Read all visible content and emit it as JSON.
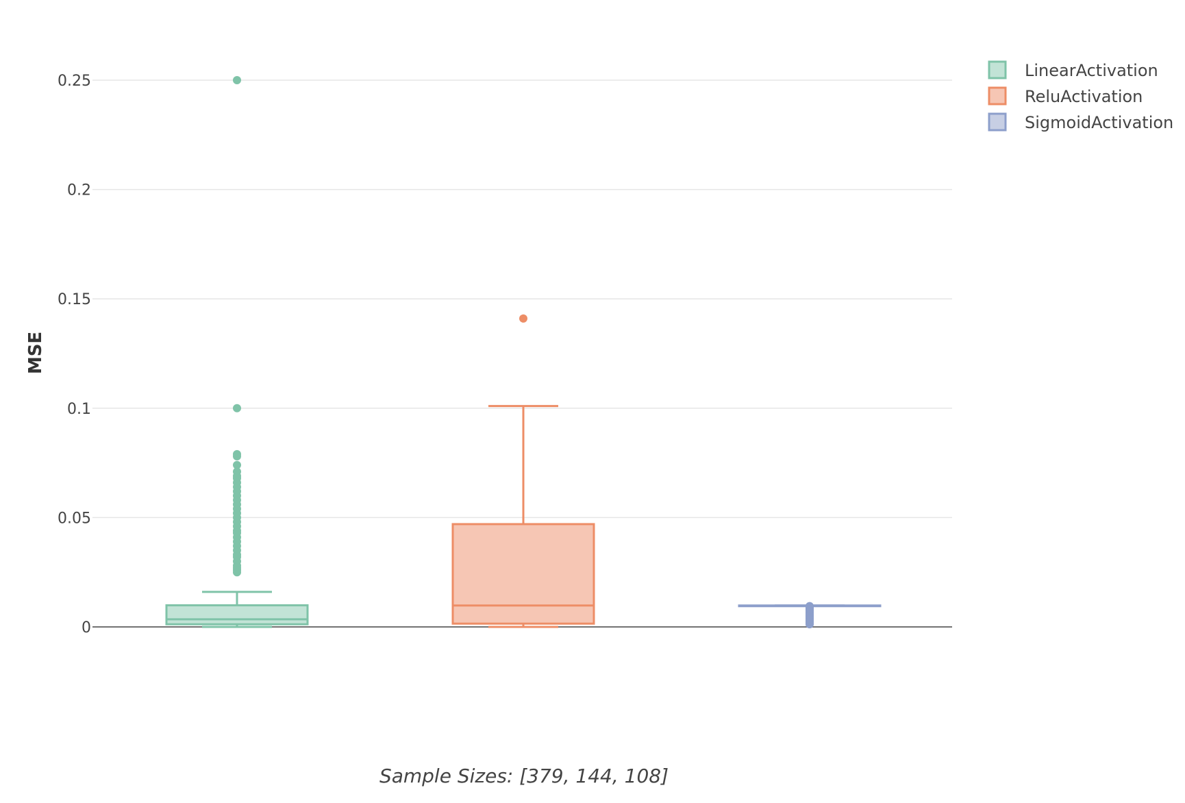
{
  "chart_data": {
    "type": "box",
    "title": "",
    "xlabel": "Sample Sizes: [379, 144, 108]",
    "ylabel": "MSE",
    "ylim": [
      -0.013,
      0.275
    ],
    "yticks": [
      {
        "value": 0,
        "label": "0"
      },
      {
        "value": 0.05,
        "label": "0.05"
      },
      {
        "value": 0.1,
        "label": "0.1"
      },
      {
        "value": 0.15,
        "label": "0.15"
      },
      {
        "value": 0.2,
        "label": "0.2"
      },
      {
        "value": 0.25,
        "label": "0.25"
      }
    ],
    "grid": true,
    "legend_position": "top-right",
    "series": [
      {
        "name": "LinearActivation",
        "color": "#7fc3a8",
        "fill": "#c2e3d6",
        "q1": 0.0012,
        "median": 0.0035,
        "q3": 0.0099,
        "whisker_low": 0.0,
        "whisker_high": 0.016,
        "outliers": [
          0.25,
          0.1,
          0.079,
          0.078,
          0.074,
          0.071,
          0.069,
          0.068,
          0.066,
          0.064,
          0.062,
          0.06,
          0.058,
          0.056,
          0.054,
          0.052,
          0.05,
          0.048,
          0.046,
          0.044,
          0.043,
          0.041,
          0.039,
          0.037,
          0.035,
          0.033,
          0.032,
          0.03,
          0.028,
          0.027,
          0.026,
          0.025
        ]
      },
      {
        "name": "ReluActivation",
        "color": "#ed8d66",
        "fill": "#f6c6b4",
        "q1": 0.0015,
        "median": 0.0098,
        "q3": 0.047,
        "whisker_low": 0.0,
        "whisker_high": 0.101,
        "outliers": [
          0.141
        ]
      },
      {
        "name": "SigmoidActivation",
        "color": "#8d9fcb",
        "fill": "#c7cfe4",
        "q1": 0.0096,
        "median": 0.0097,
        "q3": 0.0098,
        "whisker_low": 0.0096,
        "whisker_high": 0.0098,
        "outliers": [
          0.0095,
          0.0092,
          0.009,
          0.0087,
          0.0084,
          0.008,
          0.0077,
          0.0074,
          0.007,
          0.0067,
          0.0063,
          0.006,
          0.0056,
          0.0052,
          0.0048,
          0.0044,
          0.004,
          0.0036,
          0.0032,
          0.0028,
          0.0024,
          0.002,
          0.0016,
          0.0012
        ]
      }
    ]
  }
}
